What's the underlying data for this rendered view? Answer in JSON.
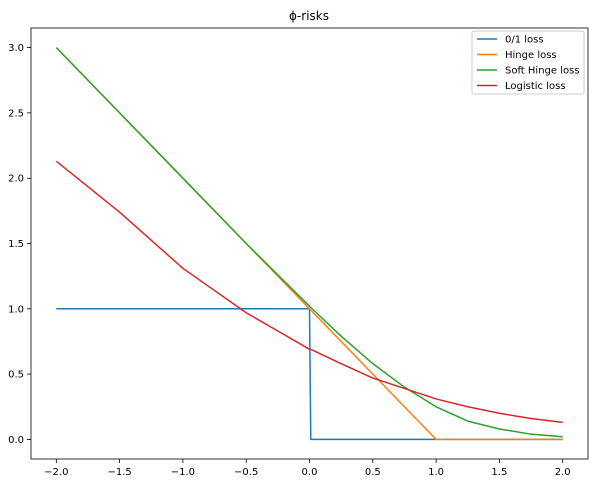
{
  "chart_data": {
    "type": "line",
    "title": "ϕ-risks",
    "xlabel": "",
    "ylabel": "",
    "xlim": [
      -2.2,
      2.2
    ],
    "ylim": [
      -0.15,
      3.15
    ],
    "x_ticks": [
      -2.0,
      -1.5,
      -1.0,
      -0.5,
      0.0,
      0.5,
      1.0,
      1.5,
      2.0
    ],
    "y_ticks": [
      0.0,
      0.5,
      1.0,
      1.5,
      2.0,
      2.5,
      3.0
    ],
    "x_tick_labels": [
      "−2.0",
      "−1.5",
      "−1.0",
      "−0.5",
      "0.0",
      "0.5",
      "1.0",
      "1.5",
      "2.0"
    ],
    "y_tick_labels": [
      "0.0",
      "0.5",
      "1.0",
      "1.5",
      "2.0",
      "2.5",
      "3.0"
    ],
    "grid": false,
    "legend_position": "top-right",
    "x": [
      -2.0,
      -1.5,
      -1.0,
      -0.5,
      -0.25,
      0.0,
      0.01,
      0.25,
      0.5,
      0.75,
      1.0,
      1.25,
      1.5,
      1.75,
      2.0
    ],
    "series": [
      {
        "name": "0/1 loss",
        "color": "#1f77b4",
        "values": [
          1,
          1,
          1,
          1,
          1,
          1,
          0,
          0,
          0,
          0,
          0,
          0,
          0,
          0,
          0
        ]
      },
      {
        "name": "Hinge loss",
        "color": "#ff7f0e",
        "values": [
          3.0,
          2.5,
          2.0,
          1.5,
          1.25,
          1.0,
          0.99,
          0.75,
          0.5,
          0.25,
          0.0,
          0.0,
          0.0,
          0.0,
          0.0
        ]
      },
      {
        "name": "Soft Hinge loss",
        "color": "#2ca02c",
        "values": [
          3.0,
          2.5,
          2.0,
          1.5,
          1.26,
          1.02,
          1.01,
          0.79,
          0.58,
          0.4,
          0.25,
          0.14,
          0.08,
          0.04,
          0.02
        ]
      },
      {
        "name": "Logistic loss",
        "color": "#d62728",
        "values": [
          2.13,
          1.74,
          1.31,
          0.97,
          0.83,
          0.69,
          0.69,
          0.58,
          0.47,
          0.39,
          0.31,
          0.25,
          0.2,
          0.16,
          0.13
        ]
      }
    ]
  }
}
